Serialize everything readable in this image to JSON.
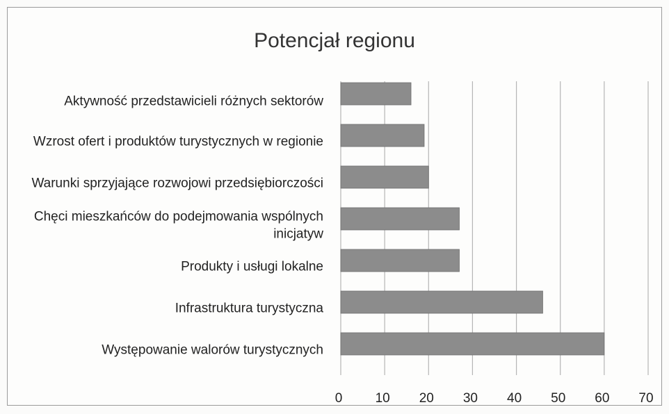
{
  "chart_data": {
    "type": "barh",
    "title": "Potencjał regionu",
    "categories": [
      "Aktywność przedstawicieli różnych sektorów",
      "Wzrost ofert i produktów turystycznych w regionie",
      "Warunki sprzyjające rozwojowi przedsiębiorczości",
      "Chęci mieszkańców do podejmowania wspólnych inicjatyw",
      "Produkty i usługi lokalne",
      "Infrastruktura turystyczna",
      "Występowanie walorów turystycznych"
    ],
    "values": [
      16,
      19,
      20,
      27,
      27,
      46,
      60
    ],
    "color": "#8c8c8c",
    "xlim": [
      0,
      70
    ],
    "xticks": [
      0,
      10,
      20,
      30,
      40,
      50,
      60,
      70
    ],
    "grid": true
  }
}
